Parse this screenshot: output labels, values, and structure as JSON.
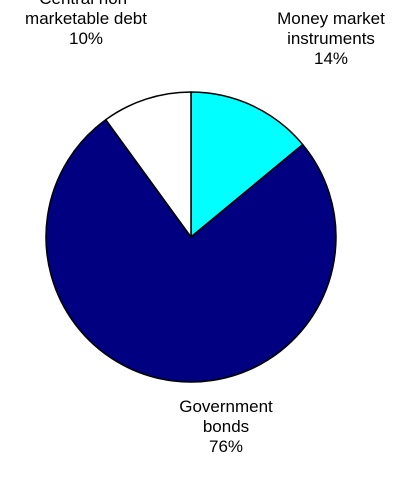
{
  "chart_data": {
    "type": "pie",
    "slices": [
      {
        "label": [
          "Money market",
          "instruments"
        ],
        "percent_label": "14%",
        "value": 14,
        "color": "#00ffff"
      },
      {
        "label": [
          "Government",
          "bonds"
        ],
        "percent_label": "76%",
        "value": 76,
        "color": "#000080"
      },
      {
        "label": [
          "Central non-",
          "marketable debt"
        ],
        "percent_label": "10%",
        "value": 10,
        "color": "#ffffff"
      }
    ],
    "start_angle": "12 o'clock",
    "direction": "clockwise",
    "legend": "none"
  }
}
